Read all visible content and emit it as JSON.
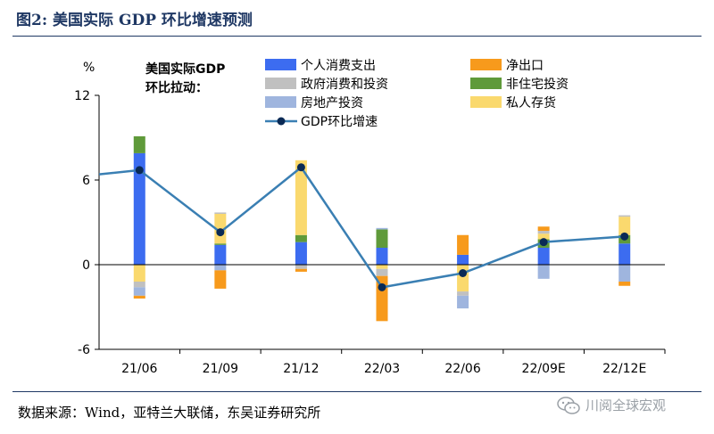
{
  "figure": {
    "title": "图2:  美国实际 GDP 环比增速预测",
    "source": "数据来源：Wind，亚特兰大联储，东吴证券研究所",
    "watermark": "川阅全球宏观",
    "watermark_icon": "wechat-icon"
  },
  "chart_data": {
    "type": "bar",
    "stacked": true,
    "y_unit": "%",
    "legend_heading": [
      "美国实际GDP",
      "环比拉动："
    ],
    "categories": [
      "21/06",
      "21/09",
      "21/12",
      "22/03",
      "22/06",
      "22/09E",
      "22/12E"
    ],
    "ylim": [
      -6,
      12
    ],
    "yticks": [
      -6,
      0,
      6,
      12
    ],
    "grid": false,
    "legend_position": "top",
    "series": [
      {
        "name": "个人消费支出",
        "color": "#3c6cf0",
        "values": [
          7.9,
          1.4,
          1.6,
          1.2,
          0.7,
          1.2,
          1.5
        ]
      },
      {
        "name": "非住宅投资",
        "color": "#5f9a3a",
        "values": [
          1.2,
          0.1,
          0.5,
          1.3,
          0.0,
          0.6,
          0.6
        ]
      },
      {
        "name": "私人存货",
        "color": "#fad96e",
        "values": [
          -1.2,
          2.1,
          5.3,
          -0.3,
          -1.9,
          0.4,
          1.3
        ]
      },
      {
        "name": "政府消费和投资",
        "color": "#c0c0c0",
        "values": [
          -0.4,
          0.1,
          -0.3,
          -0.5,
          -0.3,
          0.2,
          0.1
        ]
      },
      {
        "name": "房地产投资",
        "color": "#9fb5de",
        "values": [
          -0.6,
          -0.4,
          0.0,
          0.1,
          -0.9,
          -1.0,
          -1.2
        ]
      },
      {
        "name": "净出口",
        "color": "#f79a1c",
        "values": [
          -0.2,
          -1.3,
          -0.2,
          -3.2,
          1.4,
          0.3,
          -0.3
        ]
      }
    ],
    "line": {
      "name": "GDP环比增速",
      "color": "#3a7fb3",
      "marker_color": "#0a2a55",
      "values": [
        6.7,
        2.3,
        6.9,
        -1.6,
        -0.6,
        1.6,
        2.0
      ]
    }
  }
}
